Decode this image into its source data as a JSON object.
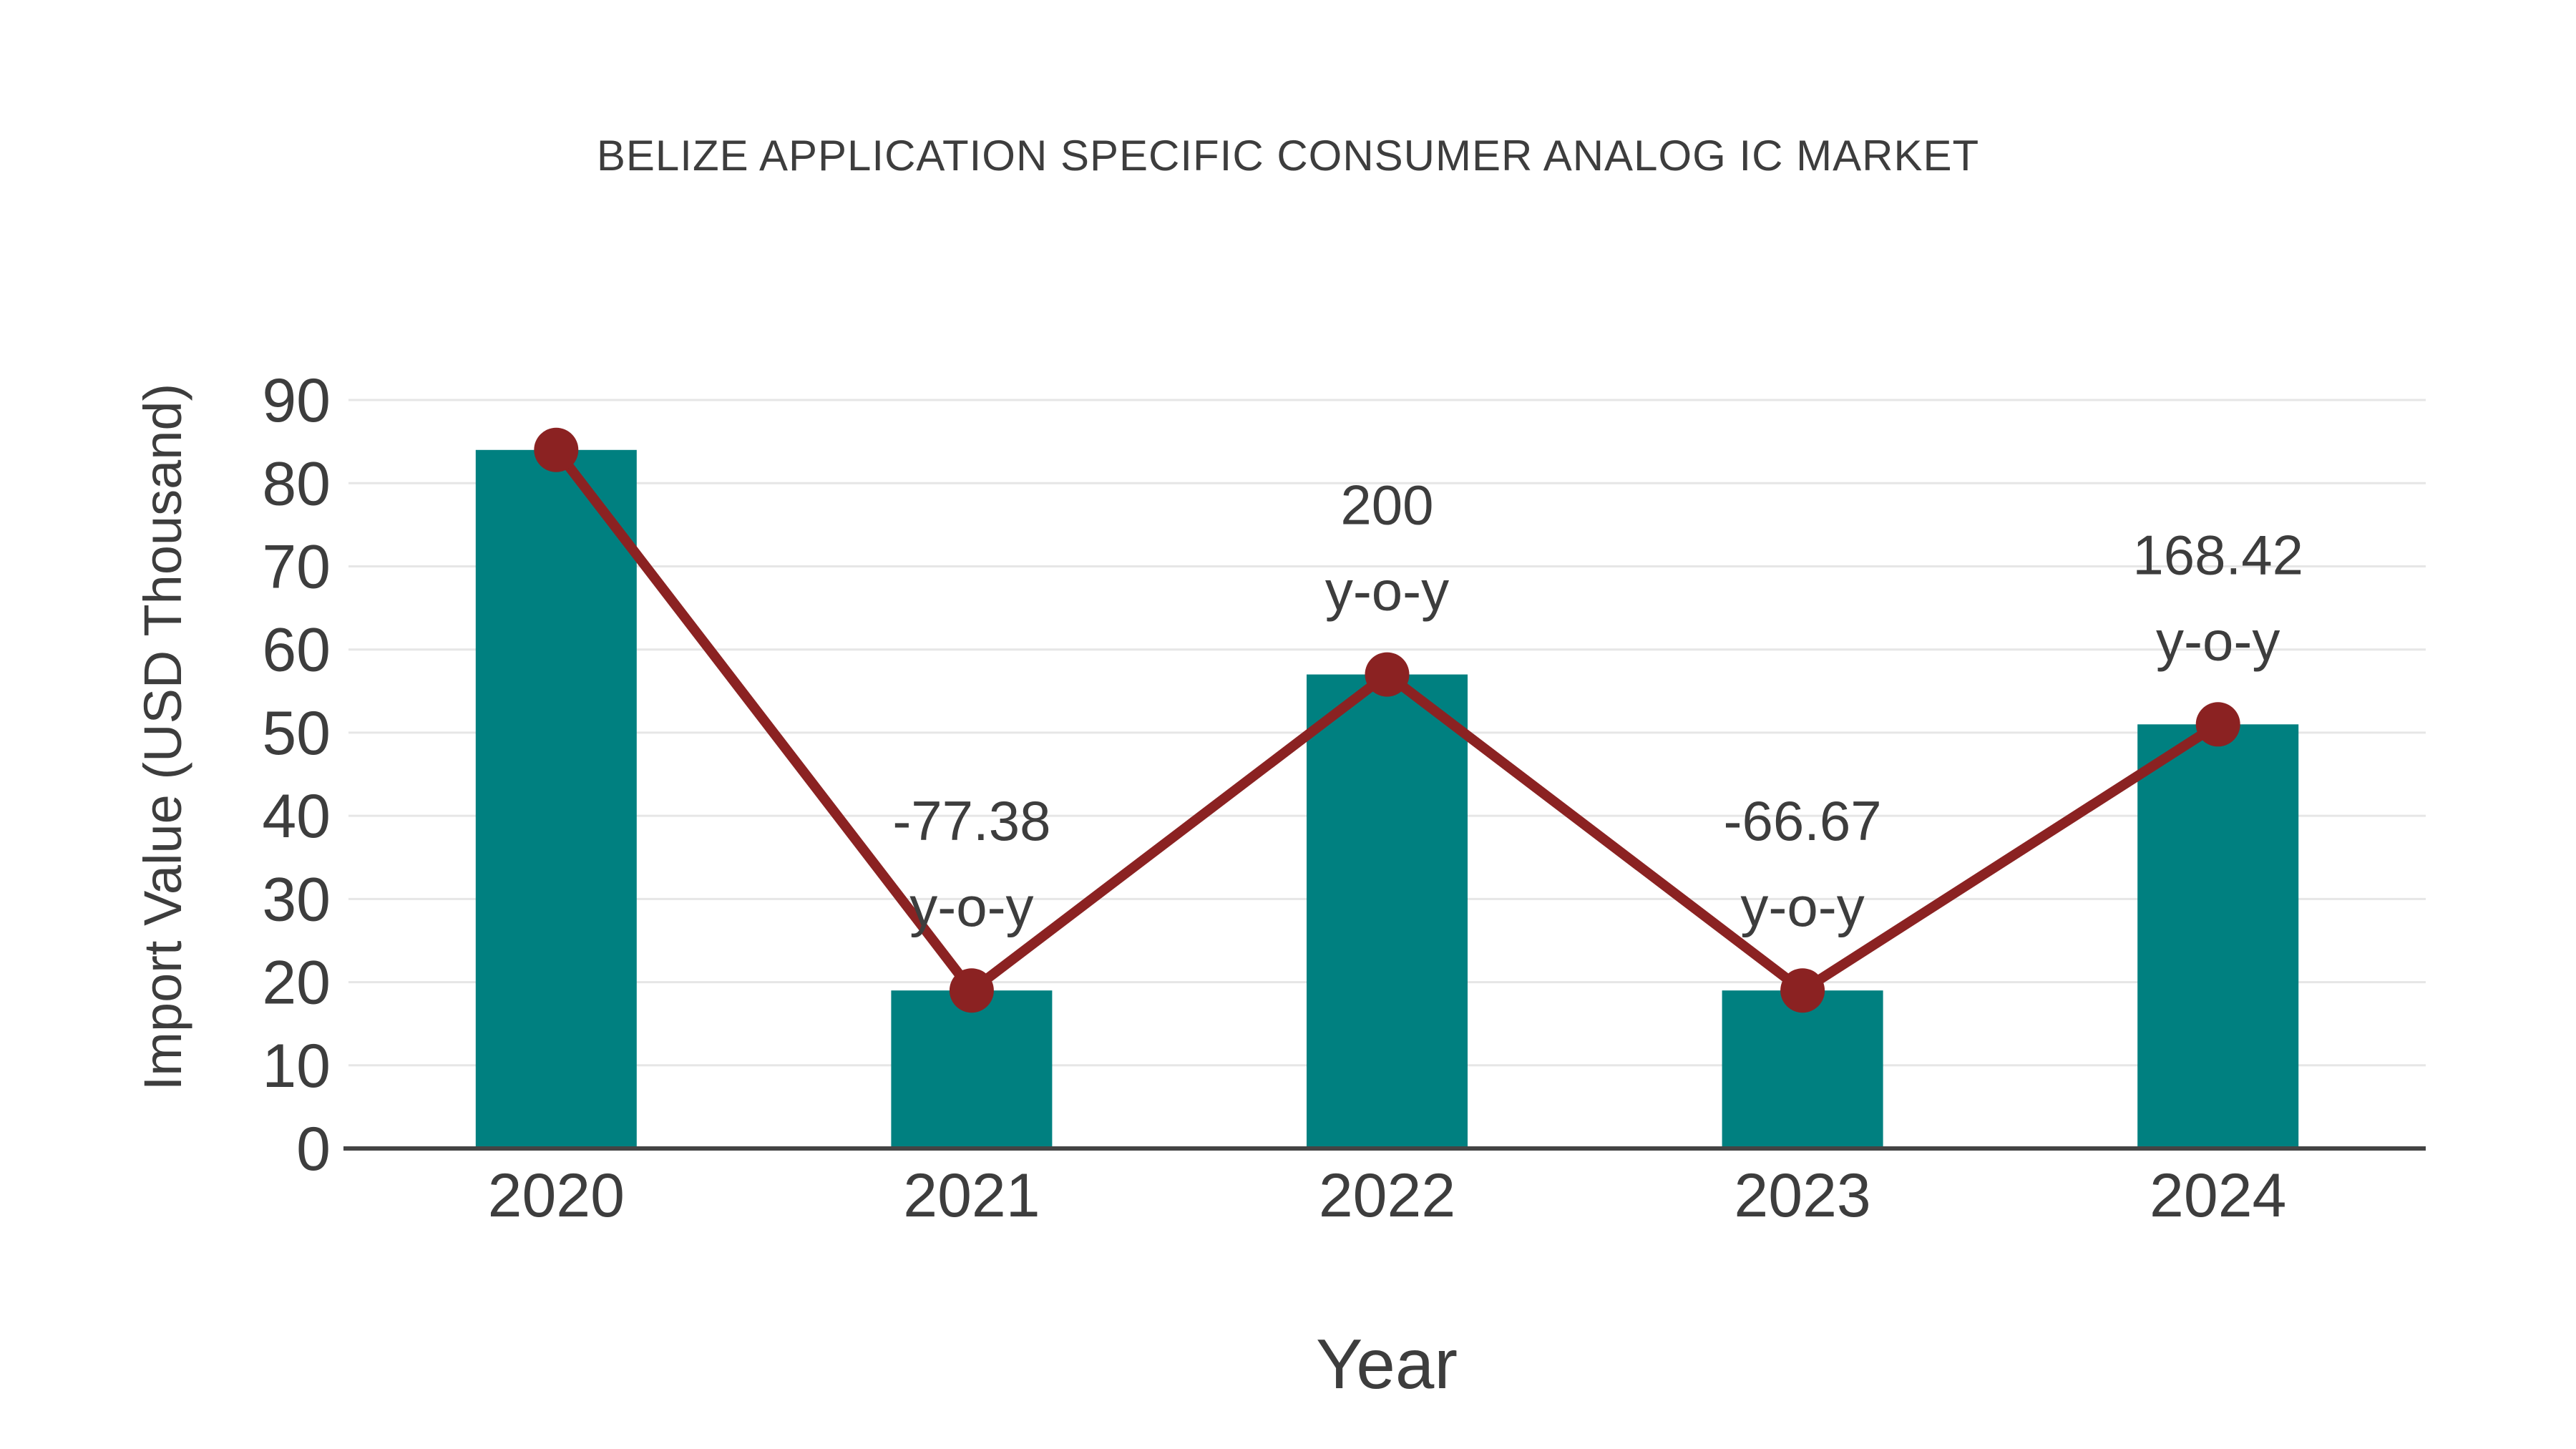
{
  "chart_data": {
    "type": "bar",
    "title": "BELIZE APPLICATION SPECIFIC CONSUMER ANALOG IC MARKET",
    "xlabel": "Year",
    "ylabel": "Import Value (USD Thousand)",
    "categories": [
      "2020",
      "2021",
      "2022",
      "2023",
      "2024"
    ],
    "series": [
      {
        "name": "import-value-bars",
        "type": "bar",
        "values": [
          84,
          19,
          57,
          19,
          51
        ],
        "color": "#008080"
      },
      {
        "name": "import-value-trend",
        "type": "line",
        "values": [
          84,
          19,
          57,
          19,
          51
        ],
        "color": "#8b2222",
        "marker": "circle",
        "marker_color": "#8b2222"
      }
    ],
    "annotations": [
      {
        "category": "2021",
        "line1": "-77.38",
        "line2": "y-o-y"
      },
      {
        "category": "2022",
        "line1": "200",
        "line2": "y-o-y"
      },
      {
        "category": "2023",
        "line1": "-66.67",
        "line2": "y-o-y"
      },
      {
        "category": "2024",
        "line1": "168.42",
        "line2": "y-o-y"
      }
    ],
    "y_ticks": [
      0,
      10,
      20,
      30,
      40,
      50,
      60,
      70,
      80,
      90
    ],
    "ylim": [
      0,
      92.5
    ],
    "grid": true,
    "legend": "none",
    "colors": {
      "bar": "#008080",
      "line": "#8b2222",
      "text": "#3d3d3d",
      "grid": "#e6e6e6",
      "axis": "#444444",
      "background": "#ffffff"
    }
  }
}
